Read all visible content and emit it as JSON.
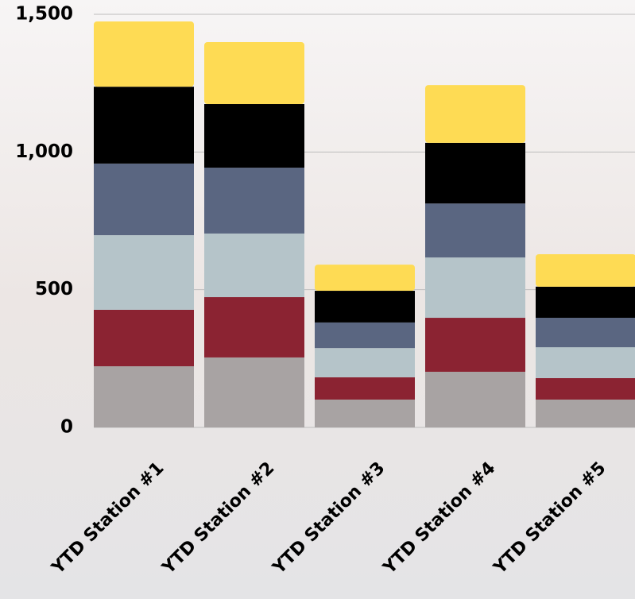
{
  "chart_data": {
    "type": "stacked_bar",
    "categories": [
      "YTD Station #1",
      "YTD Station #2",
      "YTD Station #3",
      "YTD Station #4",
      "YTD Station #5"
    ],
    "series": [
      {
        "color": "#a8a3a3",
        "values": [
          222,
          254,
          101,
          202,
          101
        ]
      },
      {
        "color": "#8b2332",
        "values": [
          205,
          219,
          81,
          196,
          78
        ]
      },
      {
        "color": "#b5c4c9",
        "values": [
          271,
          231,
          106,
          219,
          112
        ]
      },
      {
        "color": "#5a6681",
        "values": [
          260,
          239,
          93,
          196,
          107
        ]
      },
      {
        "color": "#000000",
        "values": [
          279,
          231,
          115,
          220,
          113
        ]
      },
      {
        "color": "#fedb54",
        "values": [
          237,
          225,
          95,
          210,
          118
        ]
      }
    ],
    "ylim": [
      0,
      1500
    ],
    "yticks": [
      0,
      500,
      {
        "value": 1000,
        "label": "1,000"
      },
      {
        "value": 1500,
        "label": "1,500"
      }
    ],
    "grid": true
  }
}
